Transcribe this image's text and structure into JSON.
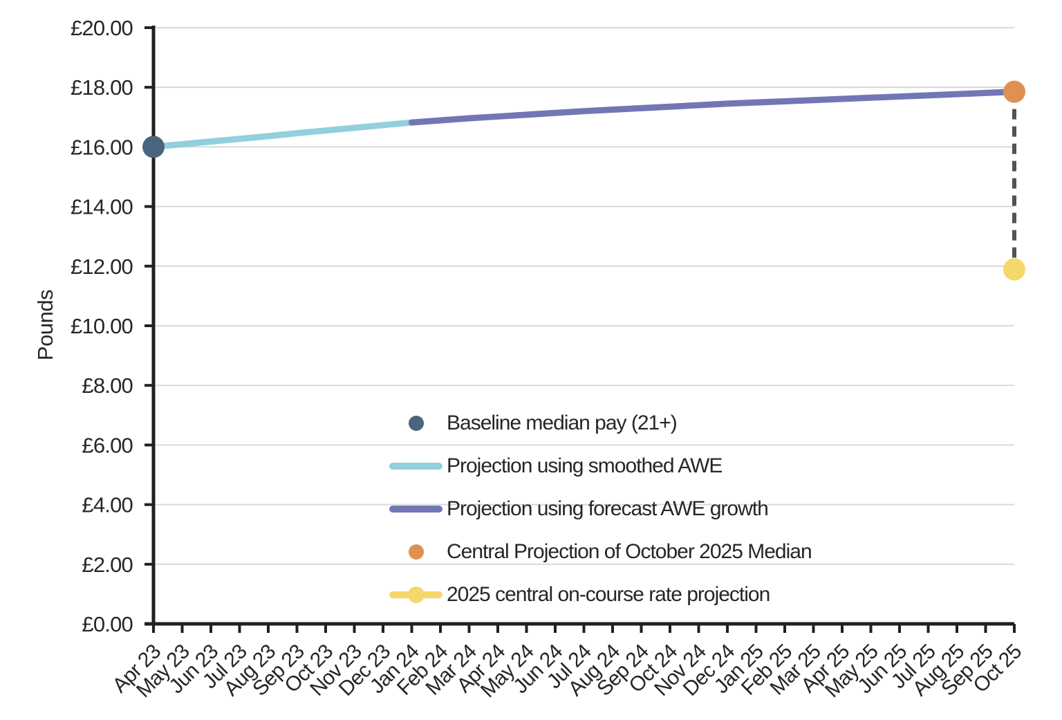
{
  "chart_data": {
    "type": "line",
    "title": "",
    "xlabel": "",
    "ylabel": "Pounds",
    "ylim": [
      0,
      20
    ],
    "ytick_step": 2,
    "ytick_labels": [
      "£0.00",
      "£2.00",
      "£4.00",
      "£6.00",
      "£8.00",
      "£10.00",
      "£12.00",
      "£14.00",
      "£16.00",
      "£18.00",
      "£20.00"
    ],
    "categories": [
      "Apr 23",
      "May 23",
      "Jun 23",
      "Jul 23",
      "Aug 23",
      "Sep 23",
      "Oct 23",
      "Nov 23",
      "Dec 23",
      "Jan 24",
      "Feb 24",
      "Mar 24",
      "Apr 24",
      "May 24",
      "Jun 24",
      "Jul 24",
      "Aug 24",
      "Sep 24",
      "Oct 24",
      "Nov 24",
      "Dec 24",
      "Jan 25",
      "Feb 25",
      "Mar 25",
      "Apr 25",
      "May 25",
      "Jun 25",
      "Jul 25",
      "Aug 25",
      "Sep 25",
      "Oct 25"
    ],
    "grid": true,
    "legend_position": "inside-bottom-center",
    "series": [
      {
        "name": "Baseline median pay (21+)",
        "type": "point",
        "marker": "dot",
        "color": "#4a657e",
        "x": "Apr 23",
        "y": 16.0
      },
      {
        "name": "Projection using smoothed AWE",
        "type": "line",
        "marker": "line",
        "color": "#92cfdf",
        "start_month": "Apr 23",
        "values": [
          16.0,
          16.09,
          16.18,
          16.27,
          16.36,
          16.46,
          16.55,
          16.64,
          16.73,
          16.82
        ]
      },
      {
        "name": "Projection using forecast AWE growth",
        "type": "line",
        "marker": "line",
        "color": "#7177b5",
        "start_month": "Jan 24",
        "values": [
          16.82,
          16.89,
          16.96,
          17.02,
          17.08,
          17.14,
          17.2,
          17.25,
          17.3,
          17.35,
          17.4,
          17.45,
          17.49,
          17.53,
          17.57,
          17.61,
          17.65,
          17.69,
          17.73,
          17.77,
          17.81,
          17.85
        ]
      },
      {
        "name": "Central Projection of October 2025 Median",
        "type": "point",
        "marker": "dot",
        "color": "#de9150",
        "x": "Oct 25",
        "y": 17.85
      },
      {
        "name": "2025 central on-course rate projection",
        "type": "point",
        "marker": "line-dot",
        "color": "#f5d76a",
        "x": "Oct 25",
        "y": 11.89
      }
    ],
    "connector": {
      "x": "Oct 25",
      "y_from": 17.85,
      "y_to": 11.89,
      "style": "dashed",
      "color": "#525252"
    },
    "axis_colors": {
      "axis": "#202020",
      "grid": "#d9d9d9",
      "text": "#262626"
    }
  }
}
